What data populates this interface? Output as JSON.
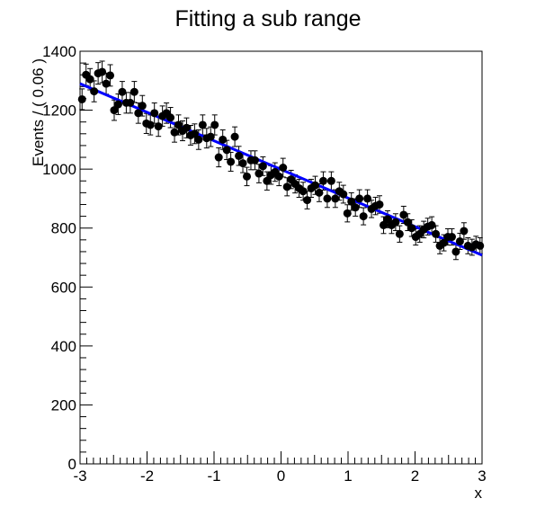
{
  "chart_data": {
    "type": "scatter",
    "title": "Fitting a sub range",
    "xlabel": "x",
    "ylabel": "Events / ( 0.06 )",
    "xlim": [
      -3,
      3
    ],
    "ylim": [
      0,
      1400
    ],
    "xticks": [
      -3,
      -2,
      -1,
      0,
      1,
      2,
      3
    ],
    "yticks": [
      0,
      200,
      400,
      600,
      800,
      1000,
      1200,
      1400
    ],
    "grid": false,
    "legend": "none",
    "series": [
      {
        "kind": "data-points-with-error-bars",
        "color": "#000000",
        "x": [
          -2.97,
          -2.91,
          -2.85,
          -2.79,
          -2.73,
          -2.67,
          -2.61,
          -2.55,
          -2.49,
          -2.43,
          -2.37,
          -2.31,
          -2.25,
          -2.19,
          -2.13,
          -2.07,
          -2.01,
          -1.95,
          -1.89,
          -1.83,
          -1.77,
          -1.71,
          -1.65,
          -1.59,
          -1.53,
          -1.47,
          -1.41,
          -1.35,
          -1.29,
          -1.23,
          -1.17,
          -1.11,
          -1.05,
          -0.99,
          -0.93,
          -0.87,
          -0.81,
          -0.75,
          -0.69,
          -0.63,
          -0.57,
          -0.51,
          -0.45,
          -0.39,
          -0.33,
          -0.27,
          -0.21,
          -0.15,
          -0.09,
          -0.03,
          0.03,
          0.09,
          0.15,
          0.21,
          0.27,
          0.33,
          0.39,
          0.45,
          0.51,
          0.57,
          0.63,
          0.69,
          0.75,
          0.81,
          0.87,
          0.93,
          0.99,
          1.05,
          1.11,
          1.17,
          1.23,
          1.29,
          1.35,
          1.41,
          1.47,
          1.53,
          1.59,
          1.65,
          1.71,
          1.77,
          1.83,
          1.89,
          1.95,
          2.01,
          2.07,
          2.13,
          2.19,
          2.25,
          2.31,
          2.37,
          2.43,
          2.49,
          2.55,
          2.61,
          2.67,
          2.73,
          2.79,
          2.85,
          2.91,
          2.97
        ],
        "y": [
          1237,
          1320,
          1305,
          1264,
          1325,
          1330,
          1290,
          1318,
          1200,
          1220,
          1262,
          1225,
          1225,
          1262,
          1190,
          1215,
          1155,
          1150,
          1190,
          1145,
          1180,
          1190,
          1175,
          1125,
          1150,
          1130,
          1140,
          1115,
          1120,
          1100,
          1150,
          1105,
          1110,
          1150,
          1040,
          1100,
          1065,
          1025,
          1110,
          1045,
          1020,
          975,
          1030,
          1030,
          985,
          1010,
          960,
          980,
          990,
          975,
          1005,
          940,
          965,
          950,
          935,
          925,
          895,
          935,
          945,
          920,
          960,
          900,
          960,
          900,
          925,
          915,
          850,
          890,
          870,
          900,
          840,
          900,
          865,
          875,
          880,
          810,
          830,
          810,
          820,
          780,
          845,
          820,
          800,
          770,
          780,
          795,
          805,
          810,
          780,
          740,
          750,
          770,
          770,
          720,
          755,
          790,
          740,
          735,
          745,
          740
        ],
        "yerr_approx": "sqrt(N)"
      },
      {
        "kind": "linear-fit",
        "color": "#0000ff",
        "x": [
          -3,
          3
        ],
        "y": [
          1290,
          708
        ]
      }
    ]
  }
}
